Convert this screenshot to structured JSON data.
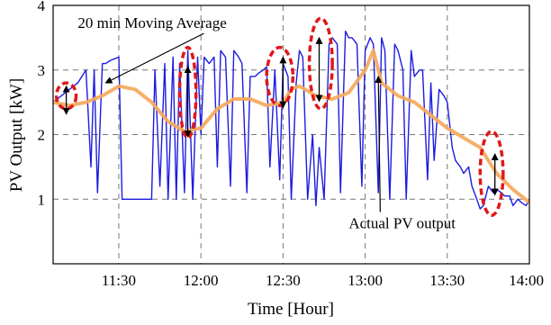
{
  "chart_data": {
    "type": "line",
    "title": "",
    "xlabel": "Time [Hour]",
    "ylabel": "PV Output [kW]",
    "x_unit": "hour of day (decimal)",
    "xlim": [
      11.1,
      14.0
    ],
    "ylim": [
      0,
      4
    ],
    "x_ticks": [
      {
        "value": 11.5,
        "label": "11:30"
      },
      {
        "value": 12.0,
        "label": "12:00"
      },
      {
        "value": 12.5,
        "label": "12:30"
      },
      {
        "value": 13.0,
        "label": "13:00"
      },
      {
        "value": 13.5,
        "label": "13:30"
      },
      {
        "value": 14.0,
        "label": "14:00"
      }
    ],
    "y_ticks": [
      {
        "value": 1,
        "label": "1"
      },
      {
        "value": 2,
        "label": "2"
      },
      {
        "value": 3,
        "label": "3"
      },
      {
        "value": 4,
        "label": "4"
      }
    ],
    "grid": true,
    "grid_style": "dashed",
    "colors": {
      "actual": "#1c1ce0",
      "average": "#f5a95c",
      "highlight": "#e01818",
      "grid": "#777777"
    },
    "series": [
      {
        "name": "Actual PV output",
        "color": "#1c1ce0",
        "x": [
          11.1,
          11.15,
          11.2,
          11.25,
          11.3,
          11.33,
          11.35,
          11.37,
          11.4,
          11.42,
          11.45,
          11.5,
          11.52,
          11.55,
          11.6,
          11.65,
          11.7,
          11.72,
          11.75,
          11.78,
          11.8,
          11.83,
          11.85,
          11.87,
          11.9,
          11.92,
          11.95,
          11.98,
          12.0,
          12.02,
          12.05,
          12.08,
          12.1,
          12.12,
          12.15,
          12.18,
          12.2,
          12.23,
          12.25,
          12.28,
          12.3,
          12.33,
          12.35,
          12.38,
          12.4,
          12.42,
          12.45,
          12.48,
          12.5,
          12.53,
          12.55,
          12.58,
          12.6,
          12.62,
          12.65,
          12.68,
          12.7,
          12.72,
          12.75,
          12.78,
          12.8,
          12.83,
          12.85,
          12.88,
          12.9,
          12.92,
          12.95,
          12.98,
          13.0,
          13.03,
          13.05,
          13.08,
          13.1,
          13.12,
          13.15,
          13.18,
          13.2,
          13.23,
          13.25,
          13.28,
          13.3,
          13.33,
          13.35,
          13.38,
          13.4,
          13.42,
          13.45,
          13.48,
          13.5,
          13.53,
          13.55,
          13.58,
          13.6,
          13.63,
          13.65,
          13.68,
          13.7,
          13.72,
          13.75,
          13.78,
          13.8,
          13.83,
          13.85,
          13.88,
          13.9,
          13.93,
          13.95,
          13.98,
          14.0
        ],
        "y": [
          2.5,
          2.6,
          2.7,
          2.8,
          3.0,
          1.5,
          3.0,
          1.1,
          3.1,
          3.1,
          3.15,
          3.2,
          1.0,
          1.0,
          1.0,
          1.0,
          1.0,
          3.0,
          1.2,
          3.1,
          1.0,
          3.2,
          1.0,
          3.1,
          1.1,
          3.3,
          1.0,
          3.2,
          2.0,
          3.2,
          3.1,
          3.2,
          1.5,
          3.3,
          3.2,
          1.2,
          3.3,
          3.2,
          3.1,
          1.1,
          2.9,
          2.9,
          2.95,
          3.0,
          3.05,
          1.5,
          3.0,
          1.3,
          3.1,
          2.9,
          1.0,
          2.8,
          3.3,
          3.2,
          1.0,
          2.0,
          0.9,
          1.8,
          1.0,
          3.4,
          3.5,
          3.4,
          1.1,
          3.6,
          3.5,
          3.5,
          3.4,
          1.2,
          3.3,
          3.5,
          3.4,
          1.1,
          3.5,
          3.3,
          1.0,
          3.4,
          3.3,
          3.0,
          1.0,
          3.3,
          2.9,
          3.0,
          3.0,
          1.3,
          2.8,
          1.6,
          2.7,
          2.6,
          2.5,
          1.8,
          1.6,
          1.5,
          1.4,
          1.5,
          1.2,
          1.0,
          0.85,
          0.9,
          1.2,
          1.1,
          1.15,
          1.1,
          1.05,
          1.05,
          0.9,
          1.0,
          0.95,
          0.9,
          1.0
        ]
      },
      {
        "name": "20 min Moving Average",
        "color": "#f5a95c",
        "x": [
          11.1,
          11.2,
          11.3,
          11.4,
          11.5,
          11.6,
          11.7,
          11.8,
          11.9,
          12.0,
          12.1,
          12.2,
          12.3,
          12.4,
          12.5,
          12.55,
          12.6,
          12.7,
          12.8,
          12.9,
          13.0,
          13.05,
          13.1,
          13.2,
          13.3,
          13.4,
          13.5,
          13.6,
          13.7,
          13.8,
          13.9,
          14.0
        ],
        "y": [
          2.5,
          2.45,
          2.5,
          2.6,
          2.75,
          2.7,
          2.5,
          2.2,
          2.05,
          2.1,
          2.4,
          2.55,
          2.55,
          2.45,
          2.5,
          2.7,
          2.75,
          2.6,
          2.55,
          2.65,
          3.0,
          3.3,
          2.8,
          2.6,
          2.5,
          2.3,
          2.1,
          1.95,
          1.8,
          1.4,
          1.15,
          0.95
        ]
      }
    ],
    "highlights": [
      {
        "cx": 11.18,
        "cy": 2.6,
        "rx": 0.06,
        "ry": 0.2
      },
      {
        "cx": 11.92,
        "cy": 2.65,
        "rx": 0.05,
        "ry": 0.7
      },
      {
        "cx": 12.48,
        "cy": 2.9,
        "rx": 0.08,
        "ry": 0.45
      },
      {
        "cx": 12.73,
        "cy": 3.1,
        "rx": 0.07,
        "ry": 0.7
      },
      {
        "cx": 13.77,
        "cy": 1.4,
        "rx": 0.07,
        "ry": 0.65
      }
    ],
    "double_arrows": [
      {
        "x": 11.18,
        "y1": 2.4,
        "y2": 2.75
      },
      {
        "x": 11.92,
        "y1": 2.05,
        "y2": 3.05
      },
      {
        "x": 12.5,
        "y1": 2.5,
        "y2": 3.2
      },
      {
        "x": 12.72,
        "y1": 2.6,
        "y2": 3.5
      },
      {
        "x": 13.79,
        "y1": 1.15,
        "y2": 1.7
      }
    ],
    "annotations": [
      {
        "text": "20 min Moving Average",
        "x": 11.25,
        "y": 3.65,
        "arrow_to": [
          11.42,
          2.8
        ]
      },
      {
        "text": "Actual PV output",
        "x": 12.9,
        "y": 0.55,
        "arrow_to": [
          13.08,
          2.9
        ]
      }
    ]
  }
}
